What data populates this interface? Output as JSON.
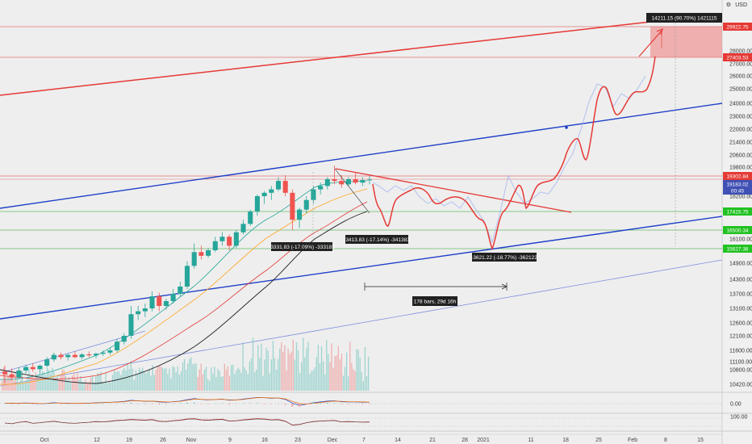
{
  "chart_data": {
    "type": "candlestick",
    "currency": "USD",
    "y_ticks": [
      "28000.00",
      "27000.00",
      "26000.00",
      "25000.00",
      "24000.00",
      "23000.00",
      "22000.00",
      "21400.00",
      "20600.00",
      "19800.00",
      "18200.00",
      "17400.00",
      "16100.00",
      "15600.00",
      "14900.00",
      "14300.00",
      "13700.00",
      "13100.00",
      "12600.00",
      "12100.00",
      "11600.00",
      "11100.00",
      "10800.00",
      "10420.00"
    ],
    "x_ticks": [
      {
        "label": "Oct",
        "x": 55
      },
      {
        "label": "12",
        "x": 120
      },
      {
        "label": "19",
        "x": 160
      },
      {
        "label": "26",
        "x": 202
      },
      {
        "label": "Nov",
        "x": 237
      },
      {
        "label": "9",
        "x": 285
      },
      {
        "label": "16",
        "x": 328
      },
      {
        "label": "23",
        "x": 369
      },
      {
        "label": "Dec",
        "x": 412
      },
      {
        "label": "7",
        "x": 451
      },
      {
        "label": "14",
        "x": 493
      },
      {
        "label": "21",
        "x": 536
      },
      {
        "label": "28",
        "x": 576
      },
      {
        "label": "2021",
        "x": 599
      },
      {
        "label": "11",
        "x": 658
      },
      {
        "label": "18",
        "x": 701
      },
      {
        "label": "25",
        "x": 742
      },
      {
        "label": "Feb",
        "x": 784
      },
      {
        "label": "8",
        "x": 825
      },
      {
        "label": "15",
        "x": 868
      }
    ],
    "price_labels": [
      {
        "text": "29922.75",
        "color": "#e53935"
      },
      {
        "text": "27403.53",
        "color": "#e53935"
      },
      {
        "text": "19302.84",
        "color": "#e53935"
      },
      {
        "text": "19183.02",
        "color": "#3f51b5"
      },
      {
        "text": "00:45",
        "color": "#3f51b5"
      },
      {
        "text": "17415.75",
        "color": "#22c222"
      },
      {
        "text": "16500.34",
        "color": "#22c222"
      },
      {
        "text": "15627.38",
        "color": "#22c222"
      }
    ],
    "annotations": [
      {
        "text": "14211.15 (90.70%) 1421115"
      },
      {
        "text": "-3331.83 (-17.09%) -333183"
      },
      {
        "text": "-3413.83 (-17.14%) -341383"
      },
      {
        "text": "-3621.22 (-18.77%) -362122"
      },
      {
        "text": "178 bars, 29d 16h"
      }
    ],
    "osc_ticks": [
      "0.00",
      "100.00"
    ],
    "candles": [
      {
        "t": 0,
        "o": 10750,
        "h": 10950,
        "l": 10450,
        "c": 10680
      },
      {
        "t": 1,
        "o": 10680,
        "h": 10850,
        "l": 10520,
        "c": 10600
      },
      {
        "t": 2,
        "o": 10600,
        "h": 10900,
        "l": 10550,
        "c": 10780
      },
      {
        "t": 3,
        "o": 10780,
        "h": 11000,
        "l": 10700,
        "c": 10900
      },
      {
        "t": 4,
        "o": 10900,
        "h": 11050,
        "l": 10750,
        "c": 10820
      },
      {
        "t": 5,
        "o": 10820,
        "h": 11000,
        "l": 10700,
        "c": 10950
      },
      {
        "t": 6,
        "o": 10950,
        "h": 11300,
        "l": 10900,
        "c": 11200
      },
      {
        "t": 7,
        "o": 11200,
        "h": 11500,
        "l": 11100,
        "c": 11400
      },
      {
        "t": 8,
        "o": 11400,
        "h": 11500,
        "l": 11200,
        "c": 11300
      },
      {
        "t": 9,
        "o": 11300,
        "h": 11450,
        "l": 11150,
        "c": 11400
      },
      {
        "t": 10,
        "o": 11400,
        "h": 11550,
        "l": 11250,
        "c": 11300
      },
      {
        "t": 11,
        "o": 11300,
        "h": 11480,
        "l": 11200,
        "c": 11420
      },
      {
        "t": 12,
        "o": 11420,
        "h": 11550,
        "l": 11300,
        "c": 11380
      },
      {
        "t": 13,
        "o": 11380,
        "h": 11500,
        "l": 11250,
        "c": 11450
      },
      {
        "t": 14,
        "o": 11450,
        "h": 11600,
        "l": 11350,
        "c": 11500
      },
      {
        "t": 15,
        "o": 11500,
        "h": 11700,
        "l": 11400,
        "c": 11600
      },
      {
        "t": 16,
        "o": 11600,
        "h": 12000,
        "l": 11500,
        "c": 11900
      },
      {
        "t": 17,
        "o": 11900,
        "h": 12200,
        "l": 11800,
        "c": 12100
      },
      {
        "t": 18,
        "o": 12100,
        "h": 13200,
        "l": 12000,
        "c": 12900
      },
      {
        "t": 19,
        "o": 12900,
        "h": 13200,
        "l": 12700,
        "c": 13000
      },
      {
        "t": 20,
        "o": 13000,
        "h": 13300,
        "l": 12800,
        "c": 13100
      },
      {
        "t": 21,
        "o": 13100,
        "h": 13800,
        "l": 13000,
        "c": 13600
      },
      {
        "t": 22,
        "o": 13600,
        "h": 13750,
        "l": 13000,
        "c": 13200
      },
      {
        "t": 23,
        "o": 13200,
        "h": 13500,
        "l": 13050,
        "c": 13400
      },
      {
        "t": 24,
        "o": 13400,
        "h": 13900,
        "l": 13300,
        "c": 13700
      },
      {
        "t": 25,
        "o": 13700,
        "h": 14200,
        "l": 13600,
        "c": 14000
      },
      {
        "t": 26,
        "o": 14000,
        "h": 15000,
        "l": 13900,
        "c": 14800
      },
      {
        "t": 27,
        "o": 14800,
        "h": 15900,
        "l": 14700,
        "c": 15500
      },
      {
        "t": 28,
        "o": 15500,
        "h": 15800,
        "l": 15100,
        "c": 15300
      },
      {
        "t": 29,
        "o": 15300,
        "h": 15700,
        "l": 15200,
        "c": 15600
      },
      {
        "t": 30,
        "o": 15600,
        "h": 16200,
        "l": 15500,
        "c": 16000
      },
      {
        "t": 31,
        "o": 16000,
        "h": 16400,
        "l": 15800,
        "c": 16200
      },
      {
        "t": 32,
        "o": 16200,
        "h": 16300,
        "l": 15600,
        "c": 15800
      },
      {
        "t": 33,
        "o": 15800,
        "h": 16500,
        "l": 15700,
        "c": 16400
      },
      {
        "t": 34,
        "o": 16400,
        "h": 17000,
        "l": 16300,
        "c": 16800
      },
      {
        "t": 35,
        "o": 16800,
        "h": 17500,
        "l": 16700,
        "c": 17400
      },
      {
        "t": 36,
        "o": 17400,
        "h": 18300,
        "l": 17200,
        "c": 18200
      },
      {
        "t": 37,
        "o": 18200,
        "h": 18500,
        "l": 17800,
        "c": 18400
      },
      {
        "t": 38,
        "o": 18400,
        "h": 18800,
        "l": 18000,
        "c": 18600
      },
      {
        "t": 39,
        "o": 18600,
        "h": 19300,
        "l": 18500,
        "c": 19100
      },
      {
        "t": 40,
        "o": 19100,
        "h": 19400,
        "l": 18200,
        "c": 18400
      },
      {
        "t": 41,
        "o": 18400,
        "h": 18600,
        "l": 16500,
        "c": 17000
      },
      {
        "t": 42,
        "o": 17000,
        "h": 17600,
        "l": 16600,
        "c": 17500
      },
      {
        "t": 43,
        "o": 17500,
        "h": 18200,
        "l": 17300,
        "c": 18000
      },
      {
        "t": 44,
        "o": 18000,
        "h": 18800,
        "l": 17800,
        "c": 18600
      },
      {
        "t": 45,
        "o": 18600,
        "h": 19000,
        "l": 18300,
        "c": 18800
      },
      {
        "t": 46,
        "o": 18800,
        "h": 19300,
        "l": 18600,
        "c": 19200
      },
      {
        "t": 47,
        "o": 19200,
        "h": 19900,
        "l": 18900,
        "c": 19100
      },
      {
        "t": 48,
        "o": 19100,
        "h": 19400,
        "l": 18700,
        "c": 18900
      },
      {
        "t": 49,
        "o": 18900,
        "h": 19300,
        "l": 18800,
        "c": 19200
      },
      {
        "t": 50,
        "o": 19200,
        "h": 19500,
        "l": 18900,
        "c": 19000
      },
      {
        "t": 51,
        "o": 19000,
        "h": 19300,
        "l": 18800,
        "c": 19150
      },
      {
        "t": 52,
        "o": 19150,
        "h": 19350,
        "l": 18900,
        "c": 19183
      }
    ],
    "osc_line1": [
      0.2,
      0.1,
      0.15,
      0.25,
      0.1,
      -0.05,
      0.1,
      0.3,
      0.2,
      0.1,
      0.05,
      0.1,
      0.2,
      0.3,
      0.4,
      0.5,
      0.6,
      0.8,
      1.2,
      1.0,
      0.8,
      0.9,
      0.6,
      0.5,
      0.7,
      0.9,
      1.4,
      1.8,
      1.5,
      1.3,
      1.5,
      1.6,
      1.2,
      1.3,
      1.6,
      1.9,
      2.2,
      2.1,
      1.9,
      2.0,
      1.5,
      0.2,
      -0.6,
      -0.2,
      0.3,
      0.6,
      0.9,
      1.0,
      0.7,
      0.6,
      0.6,
      0.5,
      0.5
    ],
    "osc_line2": [
      0.15,
      0.15,
      0.15,
      0.2,
      0.15,
      0.05,
      0.05,
      0.2,
      0.22,
      0.15,
      0.1,
      0.1,
      0.15,
      0.25,
      0.35,
      0.45,
      0.55,
      0.7,
      1.0,
      1.0,
      0.9,
      0.9,
      0.75,
      0.6,
      0.65,
      0.8,
      1.2,
      1.6,
      1.55,
      1.4,
      1.45,
      1.55,
      1.35,
      1.3,
      1.5,
      1.8,
      2.1,
      2.1,
      2.0,
      2.0,
      1.7,
      0.8,
      0.0,
      -0.1,
      0.1,
      0.4,
      0.7,
      0.9,
      0.8,
      0.7,
      0.65,
      0.6,
      0.55
    ],
    "rsi": [
      50,
      45,
      55,
      60,
      48,
      52,
      58,
      62,
      55,
      50,
      48,
      52,
      55,
      60,
      58,
      62,
      68,
      70,
      75,
      72,
      70,
      74,
      62,
      60,
      66,
      70,
      78,
      80,
      72,
      70,
      74,
      76,
      64,
      66,
      72,
      76,
      80,
      78,
      72,
      74,
      62,
      35,
      40,
      52,
      60,
      64,
      66,
      68,
      58,
      60,
      58,
      56,
      57
    ]
  }
}
